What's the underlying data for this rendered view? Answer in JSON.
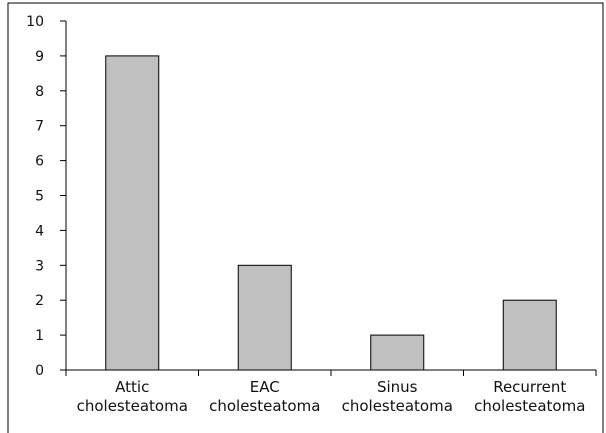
{
  "chart_data": {
    "type": "bar",
    "categories": [
      [
        "Attic",
        "cholesteatoma"
      ],
      [
        "EAC",
        "cholesteatoma"
      ],
      [
        "Sinus",
        "cholesteatoma"
      ],
      [
        "Recurrent",
        "cholesteatoma"
      ]
    ],
    "values": [
      9,
      3,
      1,
      2
    ],
    "ylim": [
      0,
      10
    ],
    "yticks": [
      "0",
      "1",
      "2",
      "3",
      "4",
      "5",
      "6",
      "7",
      "8",
      "9",
      "10"
    ],
    "title": "",
    "xlabel": "",
    "ylabel": "",
    "grid": false,
    "bar_color": "#c0c0c0",
    "bar_stroke": "#000000"
  }
}
